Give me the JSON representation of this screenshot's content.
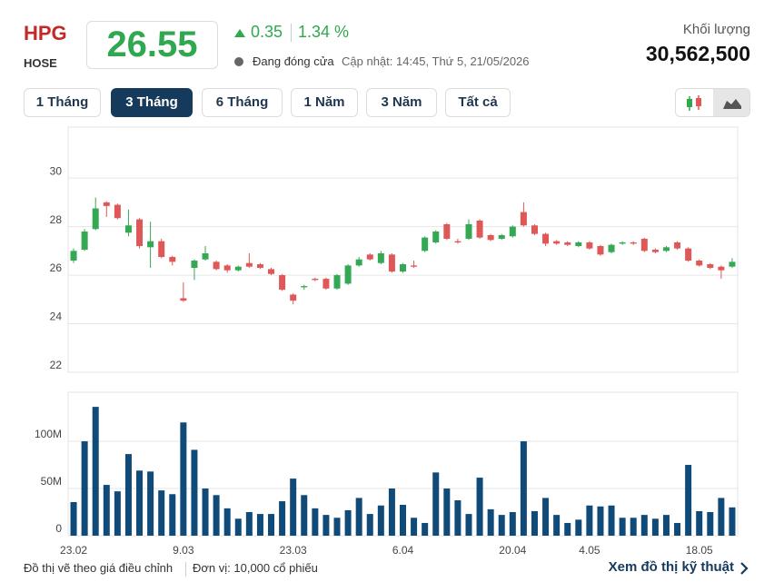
{
  "header": {
    "ticker": "HPG",
    "exchange": "HOSE",
    "price": "26.55",
    "change": "0.35",
    "change_percent": "1.34 %",
    "status": "Đang đóng cửa",
    "updated": "Cập nhật: 14:45, Thứ 5, 21/05/2026",
    "volume_label": "Khối lượng",
    "volume": "30,562,500"
  },
  "tabs": [
    "1 Tháng",
    "3 Tháng",
    "6 Tháng",
    "1 Năm",
    "3 Năm",
    "Tất cả"
  ],
  "footer": {
    "note": "Đồ thị vẽ theo giá điều chỉnh",
    "unit": "Đơn vị: 10,000 cổ phiếu",
    "link": "Xem đồ thị kỹ thuật"
  },
  "chart_data": [
    {
      "type": "candlestick",
      "categories": [
        "23.02",
        null,
        null,
        null,
        null,
        null,
        null,
        null,
        null,
        null,
        "9.03",
        null,
        null,
        null,
        null,
        null,
        null,
        null,
        null,
        null,
        "23.03",
        null,
        null,
        null,
        null,
        null,
        null,
        null,
        null,
        null,
        "6.04",
        null,
        null,
        null,
        null,
        null,
        null,
        null,
        null,
        null,
        "20.04",
        null,
        null,
        null,
        null,
        null,
        null,
        "4.05",
        null,
        null,
        null,
        null,
        null,
        null,
        null,
        null,
        null,
        "18.05",
        null,
        null,
        null
      ],
      "open": [
        26.6,
        27.05,
        27.9,
        29.0,
        28.9,
        27.75,
        28.3,
        27.15,
        27.4,
        26.75,
        25.05,
        26.3,
        26.65,
        26.55,
        26.4,
        26.2,
        26.5,
        26.45,
        26.25,
        26.0,
        25.2,
        25.5,
        25.85,
        25.85,
        25.45,
        25.65,
        26.4,
        26.85,
        26.5,
        26.85,
        26.15,
        26.4,
        27.0,
        27.35,
        28.1,
        27.4,
        27.5,
        28.25,
        27.65,
        27.5,
        27.6,
        28.6,
        28.05,
        27.7,
        27.4,
        27.35,
        27.2,
        27.35,
        27.2,
        26.95,
        27.3,
        27.35,
        27.5,
        27.05,
        27.0,
        27.35,
        27.1,
        26.6,
        26.45,
        26.35,
        26.35
      ],
      "high": [
        27.1,
        27.9,
        29.2,
        29.05,
        28.95,
        28.7,
        28.35,
        28.2,
        27.5,
        26.8,
        25.7,
        26.65,
        27.2,
        26.6,
        26.45,
        26.4,
        26.9,
        26.5,
        26.3,
        26.05,
        25.25,
        25.6,
        25.9,
        25.9,
        26.05,
        26.45,
        26.75,
        26.9,
        27.0,
        26.9,
        26.5,
        26.6,
        27.6,
        27.85,
        28.15,
        27.5,
        28.3,
        28.3,
        27.7,
        27.7,
        28.05,
        29.0,
        28.1,
        27.75,
        27.45,
        27.4,
        27.4,
        27.4,
        27.25,
        27.3,
        27.4,
        27.4,
        27.55,
        27.1,
        27.2,
        27.4,
        27.15,
        26.65,
        26.5,
        26.4,
        26.7
      ],
      "low": [
        26.5,
        27.0,
        27.85,
        28.4,
        28.3,
        27.6,
        27.1,
        26.3,
        26.7,
        26.4,
        24.9,
        25.8,
        26.6,
        26.2,
        26.1,
        26.15,
        26.3,
        26.25,
        26.0,
        25.35,
        24.8,
        25.4,
        25.75,
        25.4,
        25.4,
        25.6,
        26.35,
        26.6,
        26.45,
        26.1,
        26.1,
        26.3,
        26.95,
        27.3,
        27.45,
        27.3,
        27.45,
        27.5,
        27.4,
        27.45,
        27.55,
        28.0,
        27.65,
        27.2,
        27.25,
        27.2,
        27.15,
        27.05,
        26.8,
        26.9,
        27.25,
        27.25,
        26.95,
        26.9,
        26.95,
        27.05,
        26.55,
        26.35,
        26.25,
        25.85,
        26.3
      ],
      "close": [
        27.0,
        27.8,
        28.75,
        28.85,
        28.35,
        28.05,
        27.2,
        27.4,
        26.75,
        26.55,
        24.95,
        26.6,
        26.9,
        26.25,
        26.2,
        26.35,
        26.35,
        26.3,
        26.05,
        25.4,
        24.95,
        25.55,
        25.8,
        25.45,
        26.0,
        26.4,
        26.65,
        26.65,
        26.9,
        26.15,
        26.45,
        26.35,
        27.55,
        27.8,
        27.5,
        27.35,
        28.1,
        27.55,
        27.45,
        27.65,
        28.0,
        28.05,
        27.7,
        27.3,
        27.3,
        27.25,
        27.35,
        27.1,
        26.85,
        27.25,
        27.35,
        27.3,
        27.0,
        26.95,
        27.15,
        27.1,
        26.6,
        26.4,
        26.3,
        26.2,
        26.55
      ],
      "up_color": "#35a853",
      "down_color": "#e05757",
      "ylim": [
        22,
        32.1
      ],
      "yticks": [
        22,
        24,
        26,
        28,
        30
      ],
      "grid": true
    },
    {
      "type": "bar",
      "values": [
        35600000,
        100000000,
        136500000,
        53800000,
        47000000,
        86500000,
        69000000,
        68000000,
        48000000,
        44000000,
        120000000,
        91000000,
        50000000,
        43000000,
        29000000,
        18000000,
        25000000,
        23000000,
        23000000,
        36500000,
        60500000,
        43000000,
        29000000,
        22000000,
        19000000,
        27000000,
        40000000,
        23000000,
        32000000,
        50000000,
        32700000,
        19000000,
        13500000,
        67000000,
        50000000,
        37500000,
        23000000,
        61500000,
        28000000,
        22000000,
        25000000,
        100000000,
        26000000,
        40000000,
        22000000,
        13500000,
        17000000,
        32000000,
        31000000,
        32000000,
        19000000,
        19000000,
        22000000,
        18000000,
        22000000,
        13500000,
        75000000,
        26000000,
        25000000,
        40000000,
        30000000
      ],
      "color": "#0f4a78",
      "ylim": [
        0,
        152000000
      ],
      "yticks": [
        0,
        {
          "value": 50000000,
          "label": "50M"
        },
        {
          "value": 100000000,
          "label": "100M"
        }
      ],
      "grid": true
    }
  ]
}
